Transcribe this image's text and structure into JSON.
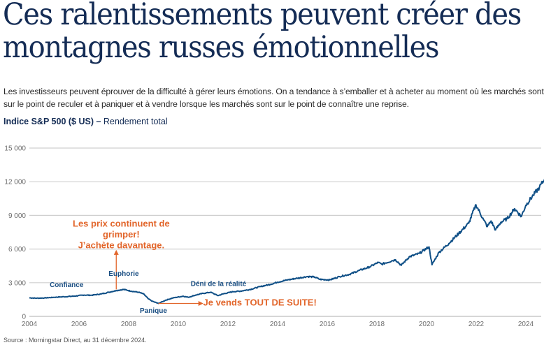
{
  "title": {
    "line1": "Ces ralentissements peuvent créer des",
    "line2": "montagnes russes émotionnelles"
  },
  "intro": "Les investisseurs peuvent éprouver de la difficulté à gérer leurs émotions. On a tendance à s’emballer et à acheter au moment où les marchés sont sur le point de reculer et à paniquer et à vendre lorsque les marchés sont sur le point de connaître une reprise.",
  "chart_heading": {
    "bold": "Indice S&P 500 ($ US)",
    "separator": " – ",
    "normal": "Rendement total"
  },
  "source": "Source : Morningstar Direct, au 31 décembre 2024.",
  "colors": {
    "line": "#0f4f86",
    "annotation_blue": "#1a4e82",
    "annotation_orange": "#e2652a",
    "title": "#142c55",
    "grid": "#cfcfcf"
  },
  "chart_data": {
    "type": "line",
    "title": "Indice S&P 500 ($ US) – Rendement total",
    "xlabel": "",
    "ylabel": "",
    "xlim": [
      2004,
      2025
    ],
    "ylim": [
      0,
      15000
    ],
    "grid": true,
    "x_ticks": [
      2004,
      2006,
      2008,
      2010,
      2012,
      2014,
      2016,
      2018,
      2020,
      2022,
      2024
    ],
    "x_tick_labels": [
      "2004",
      "2006",
      "2008",
      "2010",
      "2012",
      "2014",
      "2016",
      "2018",
      "2020",
      "2022",
      "2024"
    ],
    "y_ticks": [
      0,
      3000,
      6000,
      9000,
      12000,
      15000
    ],
    "y_tick_labels": [
      "0",
      "3 000",
      "6 000",
      "9 000",
      "12 000",
      "15 000"
    ],
    "series": [
      {
        "name": "S&P 500 Rendement total",
        "x": [
          2004.0,
          2004.3,
          2004.6,
          2005.0,
          2005.4,
          2005.8,
          2006.2,
          2006.5,
          2006.9,
          2007.2,
          2007.5,
          2007.8,
          2008.1,
          2008.4,
          2008.6,
          2008.8,
          2008.95,
          2009.2,
          2009.5,
          2009.8,
          2010.2,
          2010.4,
          2010.7,
          2011.0,
          2011.3,
          2011.6,
          2011.8,
          2012.2,
          2012.5,
          2012.9,
          2013.3,
          2013.7,
          2014.0,
          2014.4,
          2014.8,
          2015.2,
          2015.5,
          2015.7,
          2016.1,
          2016.5,
          2016.9,
          2017.3,
          2017.7,
          2018.05,
          2018.2,
          2018.6,
          2018.75,
          2018.98,
          2019.3,
          2019.7,
          2020.1,
          2020.22,
          2020.5,
          2020.9,
          2021.3,
          2021.7,
          2021.99,
          2022.3,
          2022.45,
          2022.6,
          2022.78,
          2023.0,
          2023.25,
          2023.55,
          2023.82,
          2024.0,
          2024.3,
          2024.55,
          2024.75,
          2024.92,
          2025.0
        ],
        "values": [
          1650,
          1620,
          1640,
          1700,
          1750,
          1800,
          1900,
          1880,
          2000,
          2150,
          2300,
          2400,
          2250,
          2150,
          2000,
          1550,
          1350,
          1150,
          1450,
          1650,
          1800,
          1700,
          1900,
          2050,
          2150,
          1850,
          2000,
          2200,
          2250,
          2400,
          2650,
          2850,
          3050,
          3250,
          3400,
          3550,
          3500,
          3300,
          3250,
          3550,
          3750,
          4100,
          4400,
          4800,
          4650,
          4950,
          5050,
          4550,
          5300,
          5600,
          6200,
          4600,
          5700,
          6500,
          7400,
          8300,
          9950,
          8600,
          8000,
          8500,
          7700,
          8400,
          8700,
          9600,
          8900,
          9900,
          10800,
          11500,
          12200,
          13300,
          13100
        ]
      }
    ],
    "annotations": [
      {
        "text": "Confiance",
        "x": 2005.5,
        "y": 2600,
        "style": "blue"
      },
      {
        "text": "Euphorie",
        "x": 2007.8,
        "y": 3600,
        "style": "blue"
      },
      {
        "text": "Déni de la réalité",
        "x": 2010.5,
        "y": 2700,
        "style": "blue"
      },
      {
        "text": "Panique",
        "x": 2009.0,
        "y": 300,
        "style": "blue"
      },
      {
        "text_lines": [
          "Les prix continuent de",
          "grimper!",
          "J’achète  davantage."
        ],
        "x": 2007.7,
        "y": 8000,
        "style": "orange"
      },
      {
        "text": "Je vends TOUT DE SUITE!",
        "x": 2011.0,
        "y": 950,
        "style": "orange"
      }
    ],
    "arrows": [
      {
        "from": [
          2007.5,
          2400
        ],
        "to": [
          2007.5,
          5800
        ],
        "direction": "up"
      },
      {
        "from": [
          2009.2,
          1150
        ],
        "to": [
          2010.95,
          1150
        ],
        "direction": "right"
      }
    ],
    "legend": "none"
  }
}
